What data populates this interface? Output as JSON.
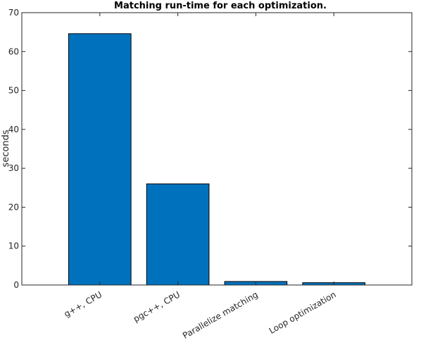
{
  "chart_data": {
    "type": "bar",
    "title": "Matching run-time for each optimization.",
    "xlabel": "",
    "ylabel": "seconds",
    "categories": [
      "g++, CPU",
      "pgc++, CPU",
      "Parallelize matching",
      "Loop optimization"
    ],
    "values": [
      64.6,
      26.0,
      0.9,
      0.6
    ],
    "ylim": [
      0,
      70
    ],
    "yticks": [
      0,
      10,
      20,
      30,
      40,
      50,
      60,
      70
    ],
    "grid": false,
    "bar_color": "#0072BD",
    "edge_color": "#000000"
  }
}
